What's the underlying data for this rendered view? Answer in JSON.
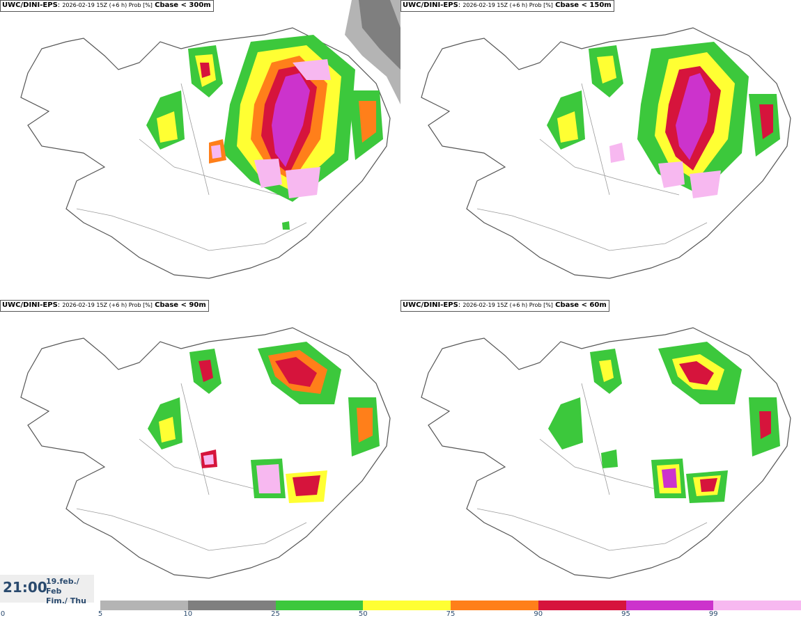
{
  "panels": [
    {
      "model": "UWC/DINI-EPS",
      "meta": "2026-02-19 15Z (+6 h) Prob [%]",
      "variable": "Cbase < 300m"
    },
    {
      "model": "UWC/DINI-EPS",
      "meta": "2026-02-19 15Z (+6 h) Prob [%]",
      "variable": "Cbase < 150m"
    },
    {
      "model": "UWC/DINI-EPS",
      "meta": "2026-02-19 15Z (+6 h) Prob [%]",
      "variable": "Cbase < 90m"
    },
    {
      "model": "UWC/DINI-EPS",
      "meta": "2026-02-19 15Z (+6 h) Prob [%]",
      "variable": "Cbase < 60m"
    }
  ],
  "time": {
    "clock": "21:00",
    "date_line1": "19.feb./ Feb",
    "date_line2": "Fim./ Thu"
  },
  "legend": {
    "ticks": [
      "0",
      "5",
      "10",
      "25",
      "50",
      "75",
      "90",
      "95",
      "99"
    ],
    "colors": [
      "#ffffff",
      "#b4b4b4",
      "#7f7f7f",
      "#3cc83c",
      "#ffff33",
      "#ff7f1a",
      "#d6143c",
      "#cc33cc",
      "#f7b8f0"
    ]
  },
  "map_colors": {
    "coast": "#555555",
    "roads": "#9a9a9a",
    "land": "#ffffff"
  }
}
